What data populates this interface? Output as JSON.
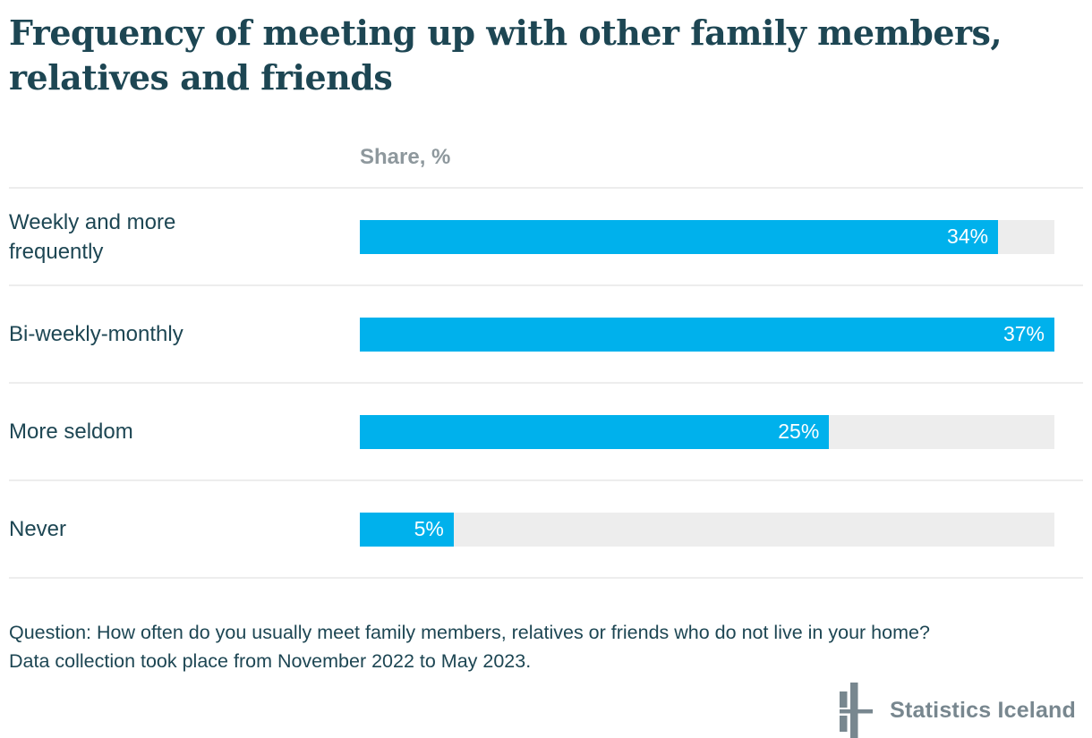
{
  "chart": {
    "title": "Frequency of meeting up with other family members, relatives and friends",
    "value_column_header": "Share, %"
  },
  "chart_data": {
    "type": "bar",
    "orientation": "horizontal",
    "title": "Frequency of meeting up with other family members, relatives and friends",
    "xlabel": "Share, %",
    "ylabel": "",
    "categories": [
      "Weekly and more frequently",
      "Bi-weekly-monthly",
      "More seldom",
      "Never"
    ],
    "values": [
      34,
      37,
      25,
      5
    ],
    "value_labels": [
      "34%",
      "37%",
      "25%",
      "5%"
    ],
    "unit": "%",
    "xlim": [
      0,
      37
    ],
    "grid": false,
    "legend": false,
    "bar_color": "#00b1ec",
    "track_color": "#ededed"
  },
  "footer": {
    "question": "Question: How often do you usually meet family members, relatives or friends who do not live in your home?",
    "data_collection": "Data collection took place from November 2022 to May 2023."
  },
  "brand": {
    "name": "Statistics Iceland"
  },
  "colors": {
    "text": "#1d4653",
    "accent_blue": "#00b1ec",
    "track_gray": "#ededed",
    "muted_gray": "#8e989d",
    "logo_gray": "#78878f"
  }
}
